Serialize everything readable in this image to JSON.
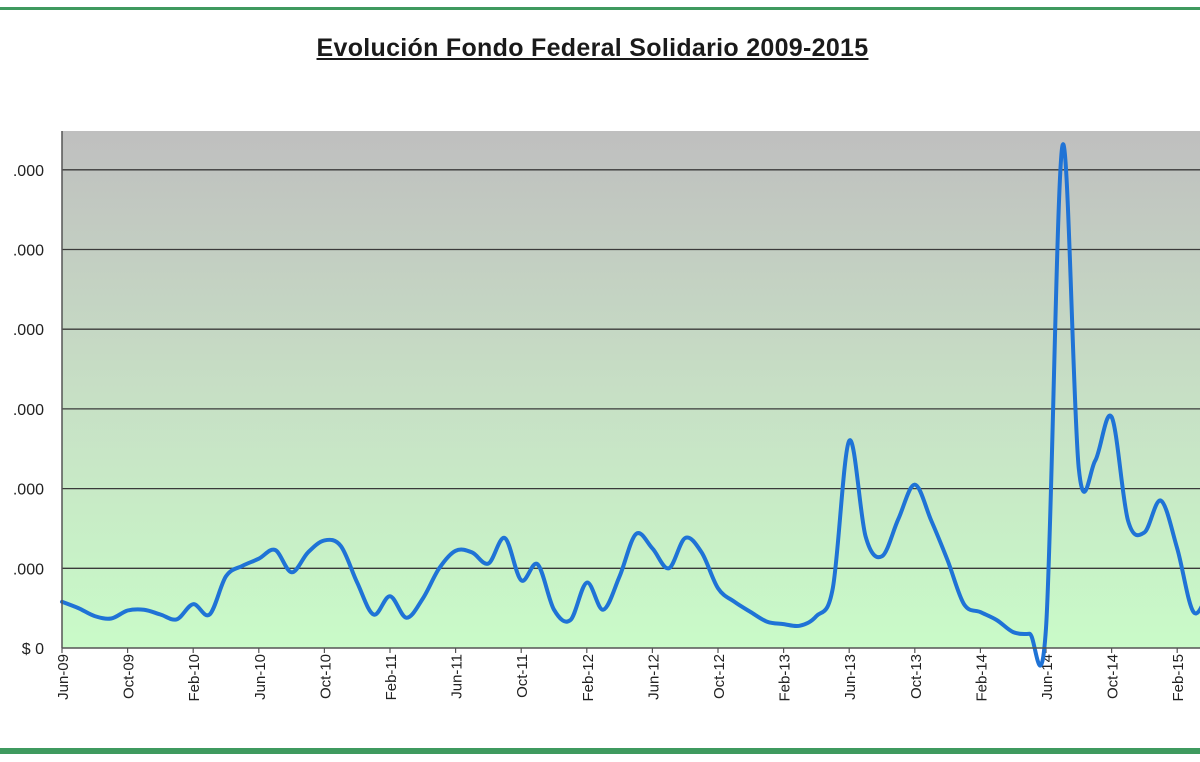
{
  "chart_data": {
    "type": "line",
    "title": "Evolución Fondo Federal Solidario 2009-2015",
    "xlabel": "",
    "ylabel": "",
    "y_tick_labels": [
      ".000",
      ".000",
      ".000",
      ".000",
      ".000",
      ".000",
      "$ 0"
    ],
    "x_tick_labels": [
      "Jun-09",
      "Oct-09",
      "Feb-10",
      "Jun-10",
      "Oct-10",
      "Feb-11",
      "Jun-11",
      "Oct-11",
      "Feb-12",
      "Jun-12",
      "Oct-12",
      "Feb-13",
      "Jun-13",
      "Oct-13",
      "Feb-14",
      "Jun-14",
      "Oct-14",
      "Feb-15"
    ],
    "y_units_note": "values in gridline units (1 unit = one labeled gridline step)",
    "ylim": [
      0,
      6.5
    ],
    "grid": true,
    "legend": "none",
    "series": [
      {
        "color": "#1f73d6",
        "months_from_first": [
          0,
          1,
          2,
          3,
          4,
          5,
          6,
          7,
          8,
          9,
          10,
          11,
          12,
          13,
          14,
          15,
          16,
          17,
          18,
          19,
          20,
          21,
          22,
          23,
          24,
          25,
          26,
          27,
          28,
          29,
          30,
          31,
          32,
          33,
          34,
          35,
          36,
          37,
          38,
          39,
          40,
          41,
          42,
          43,
          44,
          45,
          46,
          47,
          48,
          49,
          50,
          51,
          52,
          53,
          54,
          55,
          56,
          57,
          58,
          59,
          60,
          61,
          62,
          63,
          64,
          65,
          66,
          67,
          68,
          69,
          70,
          71,
          72
        ],
        "values": [
          0.58,
          0.5,
          0.4,
          0.37,
          0.47,
          0.48,
          0.42,
          0.36,
          0.55,
          0.42,
          0.9,
          1.03,
          1.12,
          1.23,
          0.95,
          1.2,
          1.35,
          1.28,
          0.82,
          0.42,
          0.65,
          0.38,
          0.62,
          1.0,
          1.22,
          1.2,
          1.06,
          1.38,
          0.85,
          1.05,
          0.48,
          0.35,
          0.82,
          0.48,
          0.9,
          1.43,
          1.25,
          1.0,
          1.38,
          1.2,
          0.75,
          0.58,
          0.45,
          0.33,
          0.3,
          0.28,
          0.4,
          0.75,
          2.6,
          1.4,
          1.15,
          1.62,
          2.05,
          1.6,
          1.1,
          0.55,
          0.45,
          0.35,
          0.2,
          0.18,
          0.25,
          6.3,
          2.25,
          2.35,
          2.9,
          1.6,
          1.45,
          1.85,
          1.25,
          0.45,
          0.7,
          0.72,
          0.8
        ]
      }
    ]
  }
}
